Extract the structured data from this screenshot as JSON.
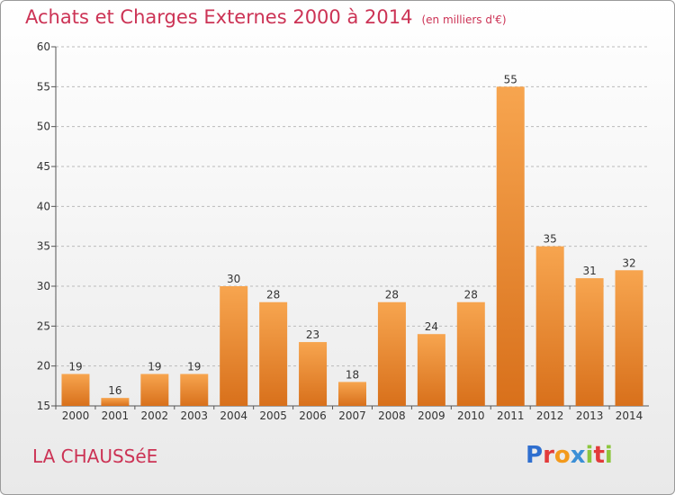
{
  "title": "Achats et Charges Externes 2000 à 2014",
  "unit": "(en milliers d'€)",
  "place": "LA CHAUSSéE",
  "logo": {
    "text": "Proxiti",
    "letters": [
      {
        "char": "P",
        "color": "#2f6fcf"
      },
      {
        "char": "r",
        "color": "#e23b3b"
      },
      {
        "char": "o",
        "color": "#f39a1c"
      },
      {
        "char": "x",
        "color": "#3b8fd6"
      },
      {
        "char": "i",
        "color": "#8cc63e"
      },
      {
        "char": "t",
        "color": "#e23b3b"
      },
      {
        "char": "i",
        "color": "#8cc63e"
      }
    ]
  },
  "colors": {
    "bar_top": "#f7a54f",
    "bar_bottom": "#d8701b",
    "title": "#cc3355",
    "grid": "#bbbbbb"
  },
  "chart_data": {
    "type": "bar",
    "categories": [
      "2000",
      "2001",
      "2002",
      "2003",
      "2004",
      "2005",
      "2006",
      "2007",
      "2008",
      "2009",
      "2010",
      "2011",
      "2012",
      "2013",
      "2014"
    ],
    "values": [
      19,
      16,
      19,
      19,
      30,
      28,
      23,
      18,
      28,
      24,
      28,
      55,
      35,
      31,
      32
    ],
    "title": "Achats et Charges Externes 2000 à 2014",
    "ylim": [
      15,
      60
    ],
    "yticks": [
      15,
      20,
      25,
      30,
      35,
      40,
      45,
      50,
      55,
      60
    ],
    "grid": "horizontal dashed"
  }
}
